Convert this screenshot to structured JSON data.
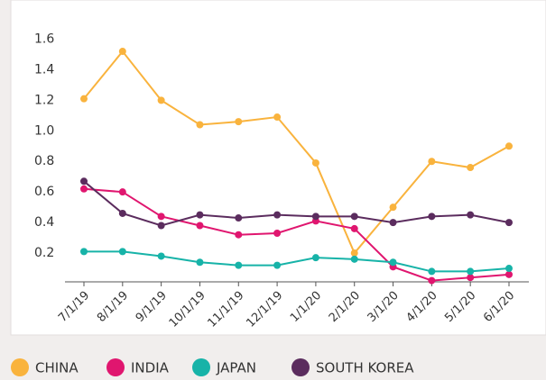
{
  "chart_data": {
    "type": "line",
    "categories": [
      "7/1/19",
      "8/1/19",
      "9/1/19",
      "10/1/19",
      "11/1/19",
      "12/1/19",
      "1/1/20",
      "2/1/20",
      "3/1/20",
      "4/1/20",
      "5/1/20",
      "6/1/20"
    ],
    "series": [
      {
        "name": "CHINA",
        "color": "#f9b33d",
        "values": [
          1.21,
          1.52,
          1.2,
          1.04,
          1.06,
          1.09,
          0.79,
          0.2,
          0.5,
          0.8,
          0.76,
          0.9
        ]
      },
      {
        "name": "INDIA",
        "color": "#e0166f",
        "values": [
          0.62,
          0.6,
          0.44,
          0.38,
          0.32,
          0.33,
          0.41,
          0.36,
          0.11,
          0.02,
          0.04,
          0.06
        ]
      },
      {
        "name": "JAPAN",
        "color": "#17b3a8",
        "values": [
          0.21,
          0.21,
          0.18,
          0.14,
          0.12,
          0.12,
          0.17,
          0.16,
          0.14,
          0.08,
          0.08,
          0.1
        ]
      },
      {
        "name": "SOUTH KOREA",
        "color": "#5b2c5e",
        "values": [
          0.67,
          0.46,
          0.38,
          0.45,
          0.43,
          0.45,
          0.44,
          0.44,
          0.4,
          0.44,
          0.45,
          0.4
        ]
      }
    ],
    "ylim": [
      0,
      1.65
    ],
    "yticks": [
      0.2,
      0.4,
      0.6,
      0.8,
      {
        "value": 1,
        "label": "1.0"
      },
      1.2,
      1.4,
      1.6
    ]
  }
}
